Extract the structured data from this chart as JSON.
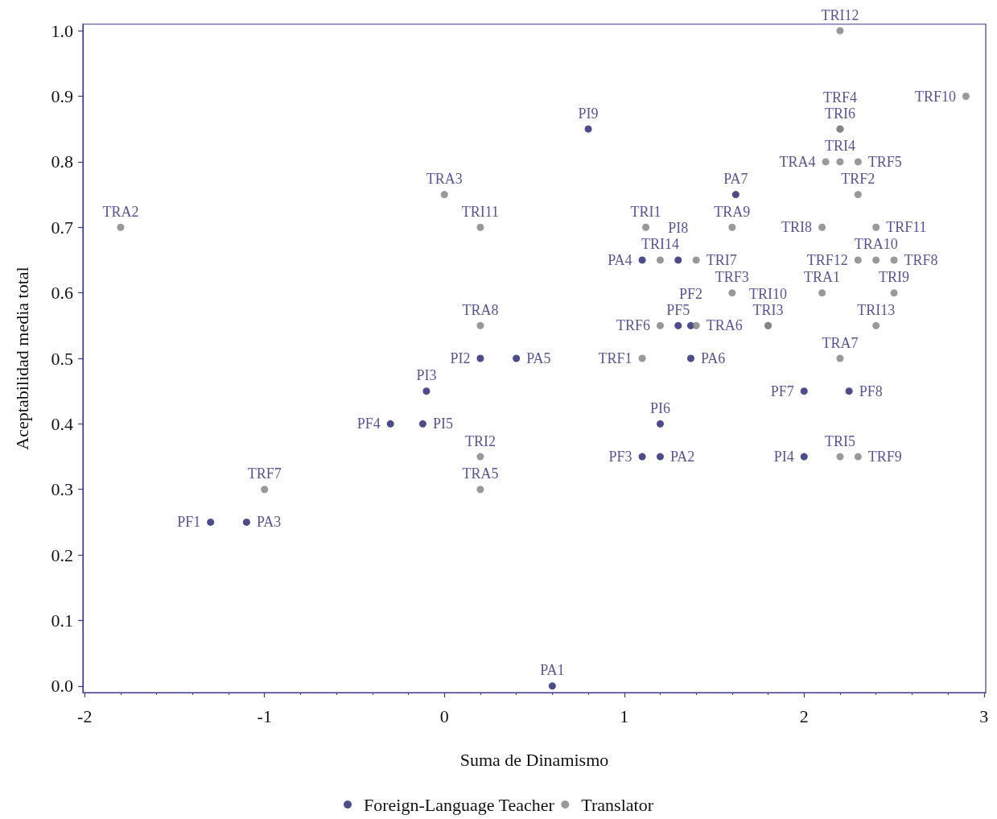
{
  "chart_data": {
    "type": "scatter",
    "xlabel": "Suma de Dinamismo",
    "ylabel": "Aceptabilidad media total",
    "xlim": [
      -2.01,
      3.01
    ],
    "xticks": [
      -2,
      -1,
      0,
      1,
      2,
      3
    ],
    "ylim": [
      -0.01,
      1.01
    ],
    "yticks": [
      {
        "value": 0,
        "label": "0.0"
      },
      0.1,
      0.2,
      0.3,
      0.4,
      0.5,
      0.6,
      0.7,
      0.8,
      0.9,
      {
        "value": 1,
        "label": "1.0"
      }
    ],
    "grid": false,
    "legend": "bottom",
    "marker": "circle",
    "series": [
      {
        "name": "Foreign-Language Teacher",
        "color": "#1f1f6e",
        "x": [
          0.6,
          -1.3,
          -1.1,
          -0.3,
          -0.12,
          -0.1,
          0.2,
          0.4,
          0.8,
          1.62,
          1.37,
          1.2,
          1.1,
          1.2,
          2.0,
          2.25,
          2.0,
          1.1,
          1.3,
          1.3,
          1.37
        ],
        "values": [
          0.0,
          0.25,
          0.25,
          0.4,
          0.4,
          0.45,
          0.5,
          0.5,
          0.85,
          0.75,
          0.5,
          0.4,
          0.35,
          0.35,
          0.45,
          0.45,
          0.35,
          0.65,
          0.65,
          0.55,
          0.55
        ],
        "value_labels": [
          "PA1",
          "PF1",
          "PA3",
          "PF4",
          "PI5",
          "PI3",
          "PI2",
          "PA5",
          "PI9",
          "PA7",
          "PA6",
          "PI6",
          "PF3",
          "PA2",
          "PF7",
          "PF8",
          "PI4",
          "PA4",
          "PI8",
          "PF5",
          "PF2"
        ]
      },
      {
        "name": "Translator",
        "color": "#808080",
        "x": [
          -1.8,
          0.0,
          0.2,
          0.2,
          0.2,
          0.2,
          -1.0,
          1.12,
          1.6,
          1.6,
          1.1,
          2.2,
          2.9,
          2.3,
          2.1,
          2.4,
          2.1,
          2.5,
          2.4,
          2.2,
          2.2,
          2.2,
          2.12,
          2.2,
          2.3,
          1.2,
          1.4,
          1.2,
          1.4,
          1.8,
          1.8,
          2.3,
          2.4,
          2.5,
          2.2,
          2.3
        ],
        "values": [
          0.7,
          0.75,
          0.7,
          0.55,
          0.35,
          0.3,
          0.3,
          0.7,
          0.7,
          0.6,
          0.5,
          1.0,
          0.9,
          0.75,
          0.7,
          0.7,
          0.6,
          0.6,
          0.55,
          0.5,
          0.85,
          0.85,
          0.8,
          0.8,
          0.8,
          0.65,
          0.65,
          0.55,
          0.55,
          0.55,
          0.55,
          0.65,
          0.65,
          0.65,
          0.35,
          0.35
        ],
        "value_labels": [
          "TRA2",
          "TRA3",
          "TRI11",
          "TRA8",
          "TRI2",
          "TRA5",
          "TRF7",
          "TRI1",
          "TRA9",
          "TRF3",
          "TRF1",
          "TRI12",
          "TRF10",
          "TRF2",
          "TRI8",
          "TRF11",
          "TRA1",
          "TRI9",
          "TRI13",
          "TRA7",
          "TRI6",
          "TRF4",
          "TRA4",
          "TRI4",
          "TRF5",
          "TRI14",
          "TRI7",
          "TRF6",
          "TRA6",
          "TRI3",
          "TRI10",
          "TRF12",
          "TRA10",
          "TRF8",
          "TRI5",
          "TRF9"
        ]
      }
    ]
  }
}
